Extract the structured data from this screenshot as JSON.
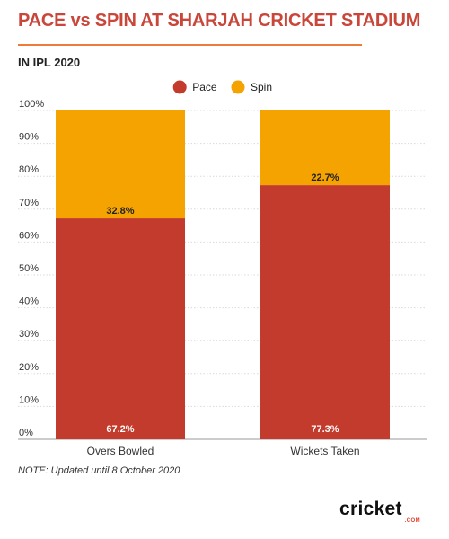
{
  "header": {
    "title": "PACE vs SPIN AT SHARJAH CRICKET STADIUM",
    "subtitle": "IN IPL 2020"
  },
  "footer": {
    "note": "NOTE: Updated until 8 October 2020"
  },
  "logo": {
    "wordmark": "cricket",
    "suffix": ".COM"
  },
  "colors": {
    "pace": "#c23b2c",
    "spin": "#f5a300",
    "title": "#c9463a",
    "rule": "#ee7a3c"
  },
  "chart_data": {
    "type": "bar",
    "stacked": true,
    "categories": [
      "Overs Bowled",
      "Wickets Taken"
    ],
    "series": [
      {
        "name": "Pace",
        "values": [
          67.2,
          77.3
        ],
        "labels": [
          "67.2%",
          "77.3%"
        ],
        "color": "#c23b2c"
      },
      {
        "name": "Spin",
        "values": [
          32.8,
          22.7
        ],
        "labels": [
          "32.8%",
          "22.7%"
        ],
        "color": "#f5a300"
      }
    ],
    "yticks": [
      "0%",
      "10%",
      "20%",
      "30%",
      "40%",
      "50%",
      "60%",
      "70%",
      "80%",
      "90%",
      "100%"
    ],
    "ylim": [
      0,
      100
    ],
    "grid": true,
    "legend_position": "top-center"
  }
}
